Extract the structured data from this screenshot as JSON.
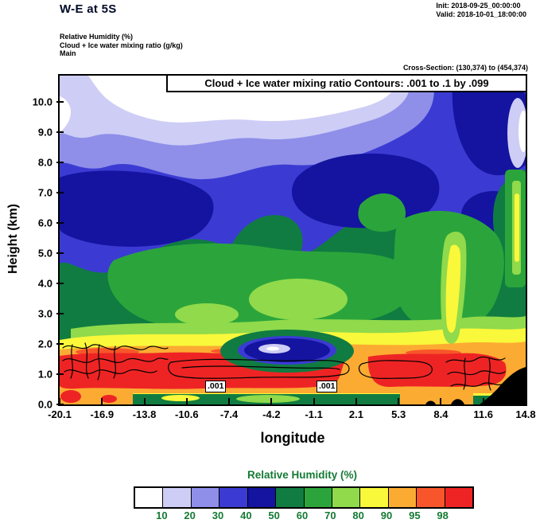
{
  "header": {
    "title": "W-E at 5S",
    "init": "Init: 2018-09-25_00:00:00",
    "valid": "Valid: 2018-10-01_18:00:00",
    "field_line1": "Relative Humidity  (%)",
    "field_line2": "Cloud + Ice water mixing ratio  (g/kg)",
    "field_line3": "Main",
    "cross_section": "Cross-Section: (130,374) to (454,374)"
  },
  "plot": {
    "contour_note": "Cloud + Ice water mixing ratio Contours: .001 to .1 by .099",
    "contour_labels": [
      ".001",
      ".001"
    ],
    "xlabel": "longitude",
    "ylabel": "Height (km)",
    "x_ticks": [
      "-20.1",
      "-16.9",
      "-13.8",
      "-10.6",
      "-7.4",
      "-4.2",
      "-1.1",
      "2.1",
      "5.3",
      "8.4",
      "11.6",
      "14.8"
    ],
    "y_ticks": [
      "0.0",
      "1.0",
      "2.0",
      "3.0",
      "4.0",
      "5.0",
      "6.0",
      "7.0",
      "8.0",
      "9.0",
      "10.0"
    ]
  },
  "colorbar": {
    "title": "Relative Humidity  (%)",
    "labels": [
      "10",
      "20",
      "30",
      "40",
      "50",
      "60",
      "70",
      "80",
      "90",
      "95",
      "98"
    ],
    "colors": [
      "#ffffff",
      "#cdcdf6",
      "#8f8fe9",
      "#3b3bd3",
      "#1414a0",
      "#107c41",
      "#2ba53b",
      "#90da4b",
      "#f9f83a",
      "#fcab32",
      "#f8562a",
      "#ee2424"
    ],
    "text_color": "#157a35"
  },
  "chart_data": {
    "type": "heatmap",
    "title": "W-E at 5S",
    "subtitle": "Vertical cross-section of Relative Humidity (%) with Cloud + Ice water mixing ratio contours (.001 to .1 by .099 g/kg)",
    "xlabel": "longitude",
    "ylabel": "Height (km)",
    "x_ticks": [
      -20.1,
      -16.9,
      -13.8,
      -10.6,
      -7.4,
      -4.2,
      -1.1,
      2.1,
      5.3,
      8.4,
      11.6,
      14.8
    ],
    "y_ticks": [
      0,
      1,
      2,
      3,
      4,
      5,
      6,
      7,
      8,
      9,
      10
    ],
    "ylim": [
      0,
      10.9
    ],
    "levels_percent": [
      10,
      20,
      30,
      40,
      50,
      60,
      70,
      80,
      90,
      95,
      98
    ],
    "palette": [
      "#ffffff",
      "#cdcdf6",
      "#8f8fe9",
      "#3b3bd3",
      "#1414a0",
      "#107c41",
      "#2ba53b",
      "#90da4b",
      "#f9f83a",
      "#fcab32",
      "#f8562a",
      "#ee2424"
    ],
    "legend_position": "bottom",
    "grid": false,
    "overlay_contours": {
      "variable": "cloud+ice water mixing ratio (g/kg)",
      "levels": [
        0.001,
        0.1
      ],
      "labels": [
        ".001"
      ],
      "location": "near 0.5-1.5 km across most of section"
    },
    "terrain": "black terrain mask at bottom right near longitude 12-14.8",
    "grid_estimate": {
      "longitudes": [
        -20.1,
        -16.9,
        -13.8,
        -10.6,
        -7.4,
        -4.2,
        -1.1,
        2.1,
        5.3,
        8.4,
        11.6,
        14.8
      ],
      "heights_km": [
        0.5,
        1,
        2,
        3,
        4,
        5,
        6,
        7,
        8,
        9,
        10
      ],
      "rh_percent": [
        [
          90,
          95,
          95,
          95,
          90,
          90,
          95,
          85,
          90,
          95,
          90,
          null
        ],
        [
          95,
          98,
          98,
          98,
          95,
          95,
          98,
          90,
          95,
          98,
          95,
          85
        ],
        [
          60,
          65,
          65,
          70,
          45,
          40,
          65,
          70,
          75,
          85,
          90,
          80
        ],
        [
          40,
          55,
          60,
          65,
          70,
          70,
          70,
          65,
          65,
          75,
          80,
          75
        ],
        [
          35,
          50,
          60,
          65,
          65,
          65,
          70,
          65,
          60,
          70,
          75,
          70
        ],
        [
          30,
          45,
          55,
          60,
          55,
          60,
          65,
          60,
          55,
          65,
          70,
          65
        ],
        [
          40,
          45,
          50,
          45,
          40,
          45,
          55,
          60,
          55,
          60,
          65,
          60
        ],
        [
          35,
          40,
          40,
          35,
          30,
          35,
          40,
          45,
          50,
          55,
          60,
          50
        ],
        [
          30,
          30,
          25,
          20,
          20,
          25,
          30,
          35,
          40,
          45,
          50,
          40
        ],
        [
          25,
          20,
          10,
          5,
          5,
          10,
          20,
          30,
          35,
          40,
          45,
          20
        ],
        [
          20,
          15,
          5,
          5,
          5,
          5,
          10,
          20,
          30,
          40,
          35,
          30
        ]
      ]
    }
  }
}
